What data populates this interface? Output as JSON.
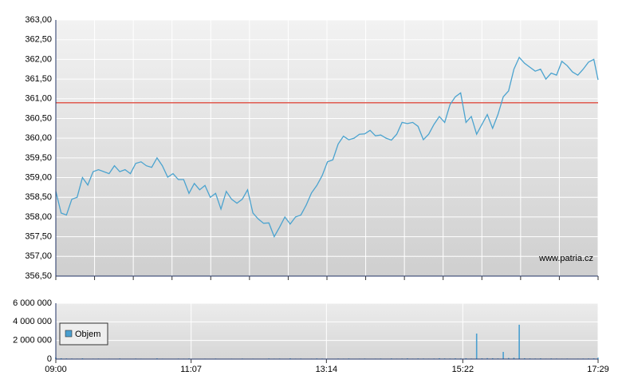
{
  "chart_data": [
    {
      "type": "line",
      "x": [
        "09:00",
        "09:05",
        "09:10",
        "09:15",
        "09:20",
        "09:25",
        "09:30",
        "09:35",
        "09:40",
        "09:45",
        "09:50",
        "09:55",
        "10:00",
        "10:05",
        "10:10",
        "10:15",
        "10:20",
        "10:25",
        "10:30",
        "10:35",
        "10:40",
        "10:45",
        "10:50",
        "10:55",
        "11:00",
        "11:05",
        "11:10",
        "11:15",
        "11:20",
        "11:25",
        "11:30",
        "11:35",
        "11:40",
        "11:45",
        "11:50",
        "11:55",
        "12:00",
        "12:05",
        "12:10",
        "12:15",
        "12:20",
        "12:25",
        "12:30",
        "12:35",
        "12:40",
        "12:45",
        "12:50",
        "12:55",
        "13:00",
        "13:05",
        "13:10",
        "13:15",
        "13:20",
        "13:25",
        "13:30",
        "13:35",
        "13:40",
        "13:45",
        "13:50",
        "13:55",
        "14:00",
        "14:05",
        "14:10",
        "14:15",
        "14:20",
        "14:25",
        "14:30",
        "14:35",
        "14:40",
        "14:45",
        "14:50",
        "14:55",
        "15:00",
        "15:05",
        "15:10",
        "15:15",
        "15:20",
        "15:25",
        "15:30",
        "15:35",
        "15:40",
        "15:45",
        "15:50",
        "15:55",
        "16:00",
        "16:05",
        "16:10",
        "16:15",
        "16:20",
        "16:25",
        "16:30",
        "16:35",
        "16:40",
        "16:45",
        "16:50",
        "16:55",
        "17:00",
        "17:05",
        "17:10",
        "17:15",
        "17:20",
        "17:25",
        "17:29"
      ],
      "series": [
        {
          "color": "#4ba3cf",
          "values": [
            358.65,
            358.1,
            358.05,
            358.45,
            358.5,
            359.0,
            358.81,
            359.15,
            359.2,
            359.15,
            359.1,
            359.3,
            359.15,
            359.2,
            359.1,
            359.36,
            359.4,
            359.3,
            359.26,
            359.5,
            359.3,
            359.01,
            359.1,
            358.95,
            358.95,
            358.6,
            358.85,
            358.69,
            358.8,
            358.5,
            358.6,
            358.2,
            358.65,
            358.45,
            358.35,
            358.45,
            358.69,
            358.1,
            357.95,
            357.84,
            357.85,
            357.5,
            357.74,
            358.0,
            357.82,
            358.0,
            358.05,
            358.3,
            358.61,
            358.8,
            359.05,
            359.4,
            359.45,
            359.85,
            360.05,
            359.96,
            360.0,
            360.1,
            360.11,
            360.2,
            360.06,
            360.08,
            360.0,
            359.95,
            360.1,
            360.4,
            360.37,
            360.4,
            360.3,
            359.96,
            360.1,
            360.35,
            360.55,
            360.4,
            360.85,
            361.05,
            361.15,
            360.4,
            360.55,
            360.1,
            360.35,
            360.6,
            360.25,
            360.6,
            361.05,
            361.2,
            361.75,
            362.05,
            361.9,
            361.8,
            361.7,
            361.75,
            361.5,
            361.65,
            361.6,
            361.95,
            361.84,
            361.68,
            361.6,
            361.75,
            361.93,
            362.0,
            361.48
          ]
        }
      ],
      "reference_line": {
        "value": 360.9,
        "color": "#e05a4f"
      },
      "ylim": [
        356.5,
        363
      ],
      "yticks": [
        {
          "value": 356.5,
          "label": "356,50"
        },
        {
          "value": 357,
          "label": "357,00"
        },
        {
          "value": 357.5,
          "label": "357,50"
        },
        {
          "value": 358,
          "label": "358,00"
        },
        {
          "value": 358.5,
          "label": "358,50"
        },
        {
          "value": 359,
          "label": "359,00"
        },
        {
          "value": 359.5,
          "label": "359,50"
        },
        {
          "value": 360,
          "label": "360,00"
        },
        {
          "value": 360.5,
          "label": "360,50"
        },
        {
          "value": 361,
          "label": "361,00"
        },
        {
          "value": 361.5,
          "label": "361,50"
        },
        {
          "value": 362,
          "label": "362,00"
        },
        {
          "value": 362.5,
          "label": "362,50"
        },
        {
          "value": 363,
          "label": "363,00"
        }
      ],
      "xlim": [
        "09:00",
        "17:29"
      ],
      "annotation": "www.patria.cz",
      "grid": true
    },
    {
      "type": "bar",
      "x": [
        "09:00",
        "09:05",
        "09:10",
        "09:15",
        "09:20",
        "09:25",
        "09:30",
        "09:35",
        "09:40",
        "09:45",
        "09:50",
        "09:55",
        "10:00",
        "10:05",
        "10:10",
        "10:15",
        "10:20",
        "10:25",
        "10:30",
        "10:35",
        "10:40",
        "10:45",
        "10:50",
        "10:55",
        "11:00",
        "11:05",
        "11:10",
        "11:15",
        "11:20",
        "11:25",
        "11:30",
        "11:35",
        "11:40",
        "11:45",
        "11:50",
        "11:55",
        "12:00",
        "12:05",
        "12:10",
        "12:15",
        "12:20",
        "12:25",
        "12:30",
        "12:35",
        "12:40",
        "12:45",
        "12:50",
        "12:55",
        "13:00",
        "13:05",
        "13:10",
        "13:15",
        "13:20",
        "13:25",
        "13:30",
        "13:35",
        "13:40",
        "13:45",
        "13:50",
        "13:55",
        "14:00",
        "14:05",
        "14:10",
        "14:15",
        "14:20",
        "14:25",
        "14:30",
        "14:35",
        "14:40",
        "14:45",
        "14:50",
        "14:55",
        "15:00",
        "15:05",
        "15:10",
        "15:15",
        "15:20",
        "15:25",
        "15:30",
        "15:35",
        "15:40",
        "15:45",
        "15:50",
        "15:55",
        "16:00",
        "16:05",
        "16:10",
        "16:15",
        "16:20",
        "16:25",
        "16:30",
        "16:35",
        "16:40",
        "16:45",
        "16:50",
        "16:55",
        "17:00",
        "17:05",
        "17:10",
        "17:15",
        "17:20",
        "17:25",
        "17:29"
      ],
      "series": [
        {
          "name": "Objem",
          "color": "#4a9fd0",
          "values": [
            180000,
            90000,
            70000,
            60000,
            50000,
            80000,
            40000,
            50000,
            60000,
            30000,
            50000,
            40000,
            70000,
            30000,
            40000,
            60000,
            50000,
            40000,
            30000,
            80000,
            50000,
            40000,
            30000,
            60000,
            50000,
            70000,
            40000,
            30000,
            50000,
            40000,
            60000,
            30000,
            40000,
            50000,
            30000,
            60000,
            40000,
            50000,
            30000,
            40000,
            70000,
            50000,
            60000,
            40000,
            80000,
            50000,
            60000,
            40000,
            50000,
            70000,
            60000,
            50000,
            40000,
            60000,
            50000,
            70000,
            40000,
            50000,
            60000,
            40000,
            50000,
            60000,
            40000,
            70000,
            50000,
            60000,
            80000,
            50000,
            70000,
            60000,
            50000,
            60000,
            90000,
            70000,
            60000,
            80000,
            70000,
            90000,
            60000,
            2740000,
            80000,
            100000,
            90000,
            70000,
            770000,
            120000,
            150000,
            3690000,
            90000,
            70000,
            60000,
            80000,
            50000,
            70000,
            60000,
            50000,
            60000,
            40000,
            50000,
            60000,
            70000,
            80000,
            150000
          ]
        }
      ],
      "ylim": [
        0,
        6000000
      ],
      "yticks": [
        0,
        {
          "value": 2000000,
          "label": "2 000 000"
        },
        {
          "value": 4000000,
          "label": "4 000 000"
        },
        {
          "value": 6000000,
          "label": "6 000 000"
        }
      ],
      "xlim": [
        "09:00",
        "17:29"
      ],
      "xticks": [
        "09:00",
        "11:07",
        "13:14",
        "15:22",
        "17:29"
      ],
      "grid": true
    }
  ]
}
